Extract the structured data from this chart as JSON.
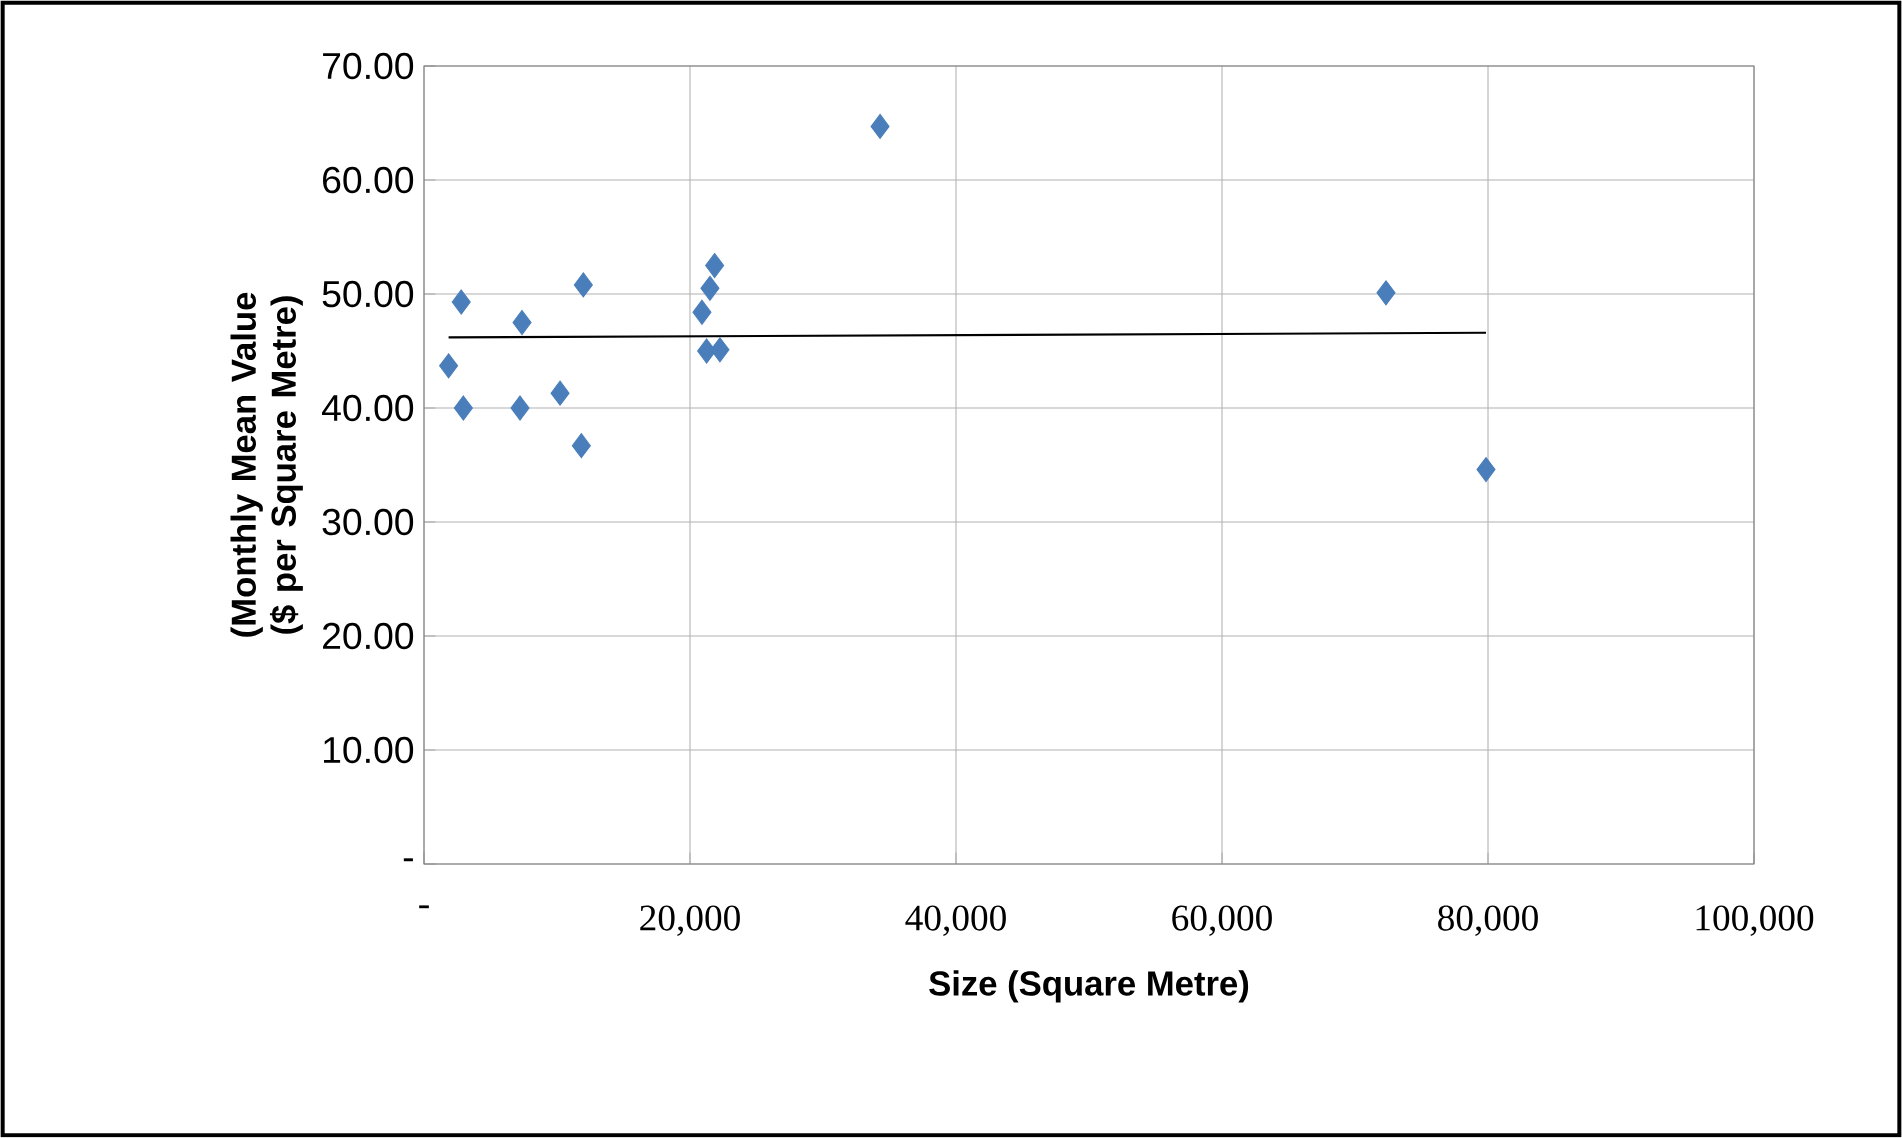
{
  "chart_data": {
    "type": "scatter",
    "xlabel": "Size (Square Metre)",
    "ylabel": "(Monthly Mean Value ($ per Square Metre)",
    "xlim": [
      0,
      100000
    ],
    "ylim": [
      0,
      70
    ],
    "xticks": [
      {
        "value": 0,
        "label": "-"
      },
      {
        "value": 20000,
        "label": "20,000"
      },
      {
        "value": 40000,
        "label": "40,000"
      },
      {
        "value": 60000,
        "label": "60,000"
      },
      {
        "value": 80000,
        "label": "80,000"
      },
      {
        "value": 100000,
        "label": "100,000"
      }
    ],
    "yticks": [
      {
        "value": 0,
        "label": "-"
      },
      {
        "value": 10,
        "label": "10.00"
      },
      {
        "value": 20,
        "label": "20.00"
      },
      {
        "value": 30,
        "label": "30.00"
      },
      {
        "value": 40,
        "label": "40.00"
      },
      {
        "value": 50,
        "label": "50.00"
      },
      {
        "value": 60,
        "label": "60.00"
      },
      {
        "value": 70,
        "label": "70.00"
      }
    ],
    "grid": true,
    "marker": "diamond",
    "series": [
      {
        "color": "#4a7ebb",
        "x": [
          2800,
          1850,
          2960,
          7370,
          7220,
          10230,
          11830,
          11980,
          21850,
          21500,
          20900,
          21250,
          22250,
          34290,
          72330,
          79850
        ],
        "values": [
          49.3,
          43.7,
          40.0,
          47.5,
          40.0,
          41.3,
          36.7,
          50.8,
          52.5,
          50.5,
          48.4,
          45.0,
          45.1,
          64.7,
          50.1,
          34.6
        ]
      },
      {
        "type": "line",
        "color": "#000000",
        "marker": "none",
        "x": [
          1850,
          79850
        ],
        "values": [
          46.2,
          46.6
        ]
      }
    ]
  }
}
